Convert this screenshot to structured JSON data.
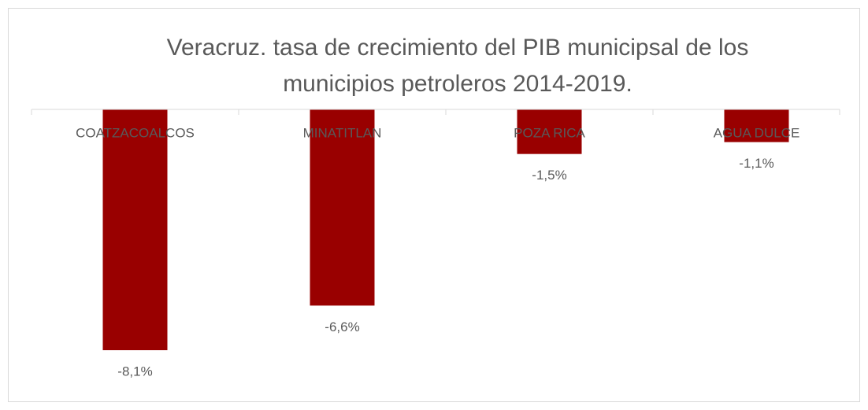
{
  "chart_data": {
    "type": "bar",
    "title": [
      "Veracruz. tasa de crecimiento del PIB municipsal de los",
      "municipios petroleros 2014-2019."
    ],
    "categories": [
      "COATZACOALCOS",
      "MINATITLAN",
      "POZA RICA",
      "AGUA DULCE"
    ],
    "values": [
      -8.1,
      -6.6,
      -1.5,
      -1.1
    ],
    "value_labels": [
      "-8,1%",
      "-6,6%",
      "-1,5%",
      "-1,1%"
    ],
    "color": "#990000",
    "ylim": [
      -9,
      0
    ]
  }
}
